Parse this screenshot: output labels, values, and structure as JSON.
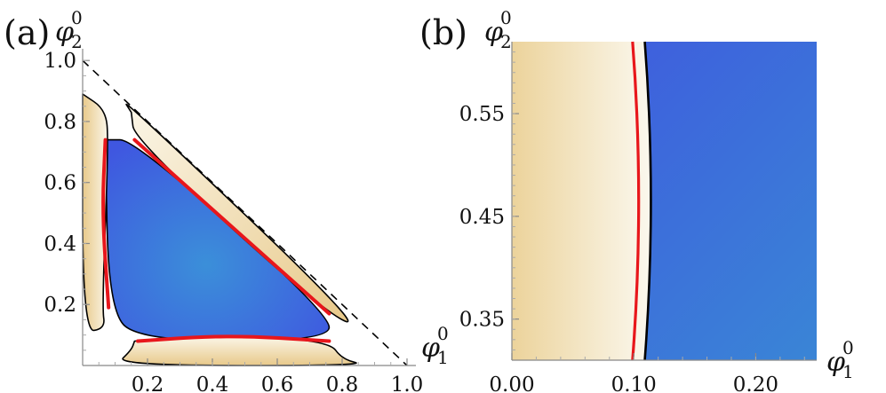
{
  "colors": {
    "blue_dark": "#3f57e0",
    "blue_light": "#3b8fd9",
    "sand_dark": "#e8c98a",
    "sand_light": "#fbf6e8",
    "red_boundary": "#e8161b",
    "black_boundary": "#000000"
  },
  "chart_data": [
    {
      "type": "area",
      "panel_label": "(a)",
      "xlabel": "φ",
      "xlabel_sup": "0",
      "xlabel_sub": "1",
      "ylabel": "φ",
      "ylabel_sup": "0",
      "ylabel_sub": "2",
      "xlim": [
        0,
        1.0
      ],
      "ylim": [
        0,
        1.05
      ],
      "xticks": [
        "0.2",
        "0.4",
        "0.6",
        "0.8",
        "1.0"
      ],
      "xtick_values": [
        0.2,
        0.4,
        0.6,
        0.8,
        1.0
      ],
      "yticks": [
        "0.2",
        "0.4",
        "0.6",
        "0.8",
        "1.0"
      ],
      "ytick_values": [
        0.2,
        0.4,
        0.6,
        0.8,
        1.0
      ],
      "simplex_boundary": [
        [
          0,
          1.0
        ],
        [
          1.0,
          0
        ]
      ],
      "regions": [
        {
          "kind": "blue",
          "polygon": [
            [
              0.07,
              0.74
            ],
            [
              0.16,
              0.74
            ],
            [
              0.76,
              0.17
            ],
            [
              0.76,
              0.08
            ],
            [
              0.17,
              0.08
            ],
            [
              0.08,
              0.19
            ]
          ]
        },
        {
          "kind": "sand",
          "polygon": [
            [
              0,
              0.89
            ],
            [
              0.07,
              0.84
            ],
            [
              0.08,
              0.74
            ],
            [
              0.06,
              0.19
            ],
            [
              0.07,
              0.12
            ],
            [
              0,
              0.11
            ]
          ]
        },
        {
          "kind": "sand",
          "polygon": [
            [
              0.15,
              0.83
            ],
            [
              0.16,
              0.74
            ],
            [
              0.75,
              0.17
            ],
            [
              0.87,
              0.12
            ],
            [
              0.12,
              0.88
            ]
          ]
        },
        {
          "kind": "sand",
          "polygon": [
            [
              0.16,
              0.08
            ],
            [
              0.45,
              0.1
            ],
            [
              0.76,
              0.08
            ],
            [
              0.8,
              0.02
            ],
            [
              0.88,
              0.0
            ],
            [
              0.1,
              0.0
            ],
            [
              0.15,
              0.05
            ]
          ]
        }
      ],
      "red_boundaries": [
        [
          [
            0.07,
            0.74
          ],
          [
            0.06,
            0.5
          ],
          [
            0.08,
            0.19
          ]
        ],
        [
          [
            0.16,
            0.74
          ],
          [
            0.76,
            0.17
          ]
        ],
        [
          [
            0.17,
            0.08
          ],
          [
            0.45,
            0.1
          ],
          [
            0.76,
            0.08
          ]
        ]
      ]
    },
    {
      "type": "heatmap",
      "panel_label": "(b)",
      "xlabel": "φ",
      "xlabel_sup": "0",
      "xlabel_sub": "1",
      "ylabel": "φ",
      "ylabel_sup": "0",
      "ylabel_sub": "2",
      "xlim": [
        0,
        0.25
      ],
      "ylim": [
        0.31,
        0.62
      ],
      "xticks": [
        "0.00",
        "0.10",
        "0.20"
      ],
      "xtick_values": [
        0.0,
        0.1,
        0.2
      ],
      "yticks": [
        "0.35",
        "0.45",
        "0.55"
      ],
      "ytick_values": [
        0.35,
        0.45,
        0.55
      ],
      "red_boundary_x": {
        "at_edges": 0.099,
        "at_middle": 0.104
      },
      "black_boundary_x": {
        "at_edges": 0.109,
        "at_middle": 0.114
      }
    }
  ]
}
